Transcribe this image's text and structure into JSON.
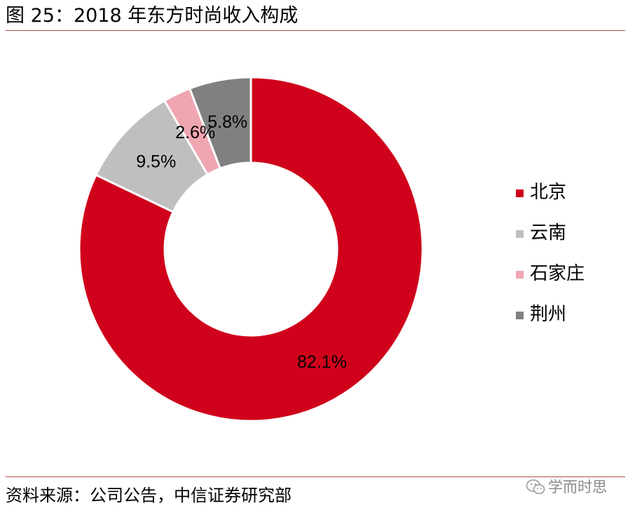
{
  "title": "图 25：2018 年东方时尚收入构成",
  "source": "资料来源：公司公告，中信证券研究部",
  "watermark": "学而时思",
  "chart_data": {
    "type": "pie",
    "donut": true,
    "title": "图 25：2018 年东方时尚收入构成",
    "categories": [
      "北京",
      "云南",
      "石家庄",
      "荆州"
    ],
    "values": [
      82.1,
      9.5,
      2.6,
      5.8
    ],
    "labels": [
      "82.1%",
      "9.5%",
      "2.6%",
      "5.8%"
    ],
    "units": "%",
    "colors": [
      "#d0021b",
      "#bfbfbf",
      "#f0a6b1",
      "#808080"
    ],
    "legend_position": "right",
    "direction": "clockwise",
    "start_angle": "top"
  }
}
